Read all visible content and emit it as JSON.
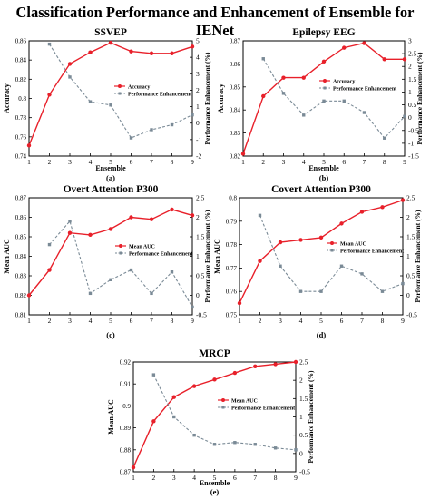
{
  "figure_title": "Classification Performance and Enhancement of Ensemble for IENet",
  "colors": {
    "primary": "#e8202a",
    "secondary": "#7a8a96"
  },
  "chart_data": [
    {
      "id": "a",
      "type": "line",
      "title": "SSVEP",
      "caption": "(a)",
      "xlabel": "Ensemble",
      "ylabel": "Accuracy",
      "y2label": "Performance Enhancement (%)",
      "x": [
        1,
        2,
        3,
        4,
        5,
        6,
        7,
        8,
        9
      ],
      "xticks": [
        "1",
        "2",
        "3",
        "4",
        "5",
        "6",
        "7",
        "8",
        "9"
      ],
      "ylim": [
        0.74,
        0.86
      ],
      "yticks": [
        "0.74",
        "0.76",
        "0.78",
        "0.8",
        "0.82",
        "0.84",
        "0.86"
      ],
      "y2lim": [
        -2,
        5
      ],
      "y2ticks": [
        "-2",
        "-1",
        "0",
        "1",
        "2",
        "3",
        "4",
        "5"
      ],
      "legend_position": "center-right",
      "series": [
        {
          "name": "Accuracy",
          "axis": "left",
          "style": "solid-circle",
          "values": [
            0.751,
            0.804,
            0.836,
            0.848,
            0.858,
            0.849,
            0.847,
            0.847,
            0.854
          ]
        },
        {
          "name": "Performance Enhancement",
          "axis": "right",
          "style": "dashed-square",
          "values": [
            null,
            4.8,
            2.8,
            1.3,
            1.1,
            -0.9,
            -0.4,
            -0.1,
            0.5
          ]
        }
      ]
    },
    {
      "id": "b",
      "type": "line",
      "title": "Epilepsy EEG",
      "caption": "(b)",
      "xlabel": "Ensemble",
      "ylabel": "Accuracy",
      "y2label": "Performance Enhancement (%)",
      "x": [
        1,
        2,
        3,
        4,
        5,
        6,
        7,
        8,
        9
      ],
      "xticks": [
        "1",
        "2",
        "3",
        "4",
        "5",
        "6",
        "7",
        "8",
        "9"
      ],
      "ylim": [
        0.82,
        0.87
      ],
      "yticks": [
        "0.82",
        "0.83",
        "0.84",
        "0.85",
        "0.86",
        "0.87"
      ],
      "y2lim": [
        -1.5,
        3
      ],
      "y2ticks": [
        "-1.5",
        "-1",
        "-0.5",
        "0",
        "0.5",
        "1",
        "1.5",
        "2",
        "2.5",
        "3"
      ],
      "legend_position": "top-right",
      "series": [
        {
          "name": "Accuracy",
          "axis": "left",
          "style": "solid-circle",
          "values": [
            0.821,
            0.846,
            0.854,
            0.854,
            0.861,
            0.867,
            0.869,
            0.862,
            0.862
          ]
        },
        {
          "name": "Performance Enhancement",
          "axis": "right",
          "style": "dashed-square",
          "values": [
            null,
            2.3,
            0.95,
            0.1,
            0.65,
            0.65,
            0.2,
            -0.8,
            0.05
          ]
        }
      ]
    },
    {
      "id": "c",
      "type": "line",
      "title": "Overt Attention P300",
      "caption": "(c)",
      "xlabel": "",
      "ylabel": "Mean AUC",
      "y2label": "Performance Enhancement (%)",
      "x": [
        1,
        2,
        3,
        4,
        5,
        6,
        7,
        8,
        9
      ],
      "xticks": [
        "1",
        "2",
        "3",
        "4",
        "5",
        "6",
        "7",
        "8",
        "9"
      ],
      "ylim": [
        0.81,
        0.87
      ],
      "yticks": [
        "0.81",
        "0.82",
        "0.83",
        "0.84",
        "0.85",
        "0.86",
        "0.87"
      ],
      "y2lim": [
        -0.5,
        2.5
      ],
      "y2ticks": [
        "-0.5",
        "0",
        "0.5",
        "1",
        "1.5",
        "2",
        "2.5"
      ],
      "legend_position": "center-right",
      "series": [
        {
          "name": "Mean AUC",
          "axis": "left",
          "style": "solid-circle",
          "values": [
            0.82,
            0.833,
            0.852,
            0.851,
            0.854,
            0.86,
            0.859,
            0.864,
            0.861
          ]
        },
        {
          "name": "Performance Enhancement",
          "axis": "right",
          "style": "dashed-square",
          "values": [
            null,
            1.3,
            1.9,
            0.05,
            0.4,
            0.65,
            0.05,
            0.6,
            -0.3
          ]
        }
      ]
    },
    {
      "id": "d",
      "type": "line",
      "title": "Covert Attention P300",
      "caption": "(d)",
      "xlabel": "",
      "ylabel": "Mean AUC",
      "y2label": "Performance Enhancement (%)",
      "x": [
        1,
        2,
        3,
        4,
        5,
        6,
        7,
        8,
        9
      ],
      "xticks": [
        "1",
        "2",
        "3",
        "4",
        "5",
        "6",
        "7",
        "8",
        "9"
      ],
      "ylim": [
        0.75,
        0.8
      ],
      "yticks": [
        "0.75",
        "0.76",
        "0.77",
        "0.78",
        "0.79",
        "0.8"
      ],
      "y2lim": [
        -0.5,
        2.5
      ],
      "y2ticks": [
        "-0.5",
        "0",
        "0.5",
        "1",
        "1.5",
        "2",
        "2.5"
      ],
      "legend_position": "center-right",
      "series": [
        {
          "name": "Mean AUC",
          "axis": "left",
          "style": "solid-circle",
          "values": [
            0.755,
            0.773,
            0.781,
            0.782,
            0.783,
            0.789,
            0.794,
            0.796,
            0.799
          ]
        },
        {
          "name": "Performance Enhancement",
          "axis": "right",
          "style": "dashed-square",
          "values": [
            null,
            2.05,
            0.75,
            0.1,
            0.1,
            0.75,
            0.55,
            0.1,
            0.3
          ]
        }
      ]
    },
    {
      "id": "e",
      "type": "line",
      "title": "MRCP",
      "caption": "(e)",
      "xlabel": "Ensemble",
      "ylabel": "Mean AUC",
      "y2label": "Performance Enhancement (%)",
      "x": [
        1,
        2,
        3,
        4,
        5,
        6,
        7,
        8,
        9
      ],
      "xticks": [
        "1",
        "2",
        "3",
        "4",
        "5",
        "6",
        "7",
        "8",
        "9"
      ],
      "ylim": [
        0.87,
        0.92
      ],
      "yticks": [
        "0.87",
        "0.88",
        "0.89",
        "0.9",
        "0.91",
        "0.92"
      ],
      "y2lim": [
        -0.5,
        2.5
      ],
      "y2ticks": [
        "-0.5",
        "0",
        "0.5",
        "1",
        "1.5",
        "2",
        "2.5"
      ],
      "legend_position": "center-right",
      "series": [
        {
          "name": "Mean AUC",
          "axis": "left",
          "style": "solid-circle",
          "values": [
            0.872,
            0.893,
            0.904,
            0.909,
            0.912,
            0.915,
            0.918,
            0.919,
            0.92
          ]
        },
        {
          "name": "Performance Enhancement",
          "axis": "right",
          "style": "dashed-square",
          "values": [
            null,
            2.15,
            1.0,
            0.5,
            0.25,
            0.3,
            0.25,
            0.15,
            0.1
          ]
        }
      ]
    }
  ]
}
